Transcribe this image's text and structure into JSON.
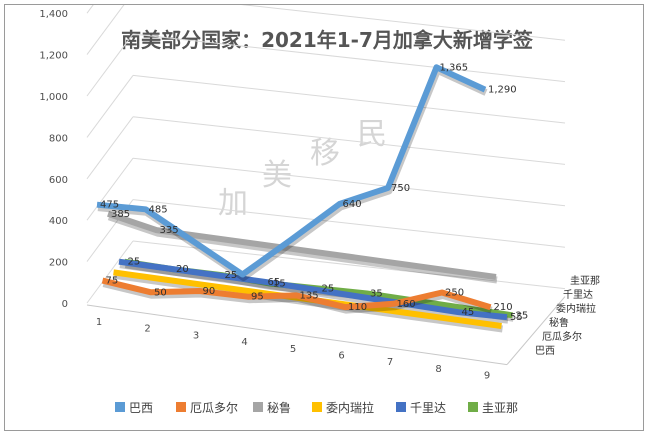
{
  "watermark": [
    "加",
    "美",
    "移",
    "民"
  ],
  "chart_data": {
    "type": "line",
    "subtype": "3d-line",
    "title": "南美部分国家：2021年1-7月加拿大新增学签",
    "categories": [
      "1",
      "2",
      "3",
      "4",
      "5",
      "6",
      "7",
      "8",
      "9"
    ],
    "ylim": [
      0,
      1400
    ],
    "yticks": [
      "0",
      "200",
      "400",
      "600",
      "800",
      "1,000",
      "1,200",
      "1,400"
    ],
    "grid": true,
    "legend_position": "bottom",
    "series": [
      {
        "name": "巴西",
        "color": "#5b9bd5",
        "values": [
          475,
          485,
          null,
          235,
          435,
          640,
          750,
          1365,
          1290
        ],
        "labels": [
          "475",
          "485",
          "",
          "",
          "",
          "640",
          "750",
          "1,365",
          "1,290"
        ]
      },
      {
        "name": "厄瓜多尔",
        "color": "#ed7d31",
        "values": [
          75,
          50,
          90,
          95,
          135,
          110,
          160,
          250,
          210
        ],
        "labels": [
          "75",
          "50",
          "90",
          "95",
          "135",
          "110",
          "160",
          "250",
          "210"
        ]
      },
      {
        "name": "秘鲁",
        "color": "#a5a5a5",
        "values": [
          385,
          335,
          null,
          null,
          null,
          null,
          null,
          null,
          null
        ],
        "labels": [
          "385",
          "335",
          "",
          "",
          "",
          "",
          "",
          "",
          ""
        ]
      },
      {
        "name": "委内瑞拉",
        "color": "#ffc000",
        "values": [
          null,
          null,
          null,
          null,
          null,
          null,
          null,
          null,
          null
        ],
        "labels": [
          "",
          "",
          "",
          "",
          "",
          "",
          "",
          "",
          ""
        ]
      },
      {
        "name": "千里达",
        "color": "#4472c4",
        "values": [
          null,
          null,
          null,
          65,
          null,
          null,
          null,
          45,
          55
        ],
        "labels": [
          "",
          "",
          "",
          "65",
          "",
          "",
          "",
          "45",
          "55"
        ]
      },
      {
        "name": "圭亚那",
        "color": "#70ad47",
        "values": [
          25,
          20,
          25,
          15,
          25,
          35,
          null,
          null,
          25
        ],
        "labels": [
          "25",
          "20",
          "25",
          "15",
          "25",
          "35",
          "",
          "",
          "25"
        ]
      }
    ]
  }
}
